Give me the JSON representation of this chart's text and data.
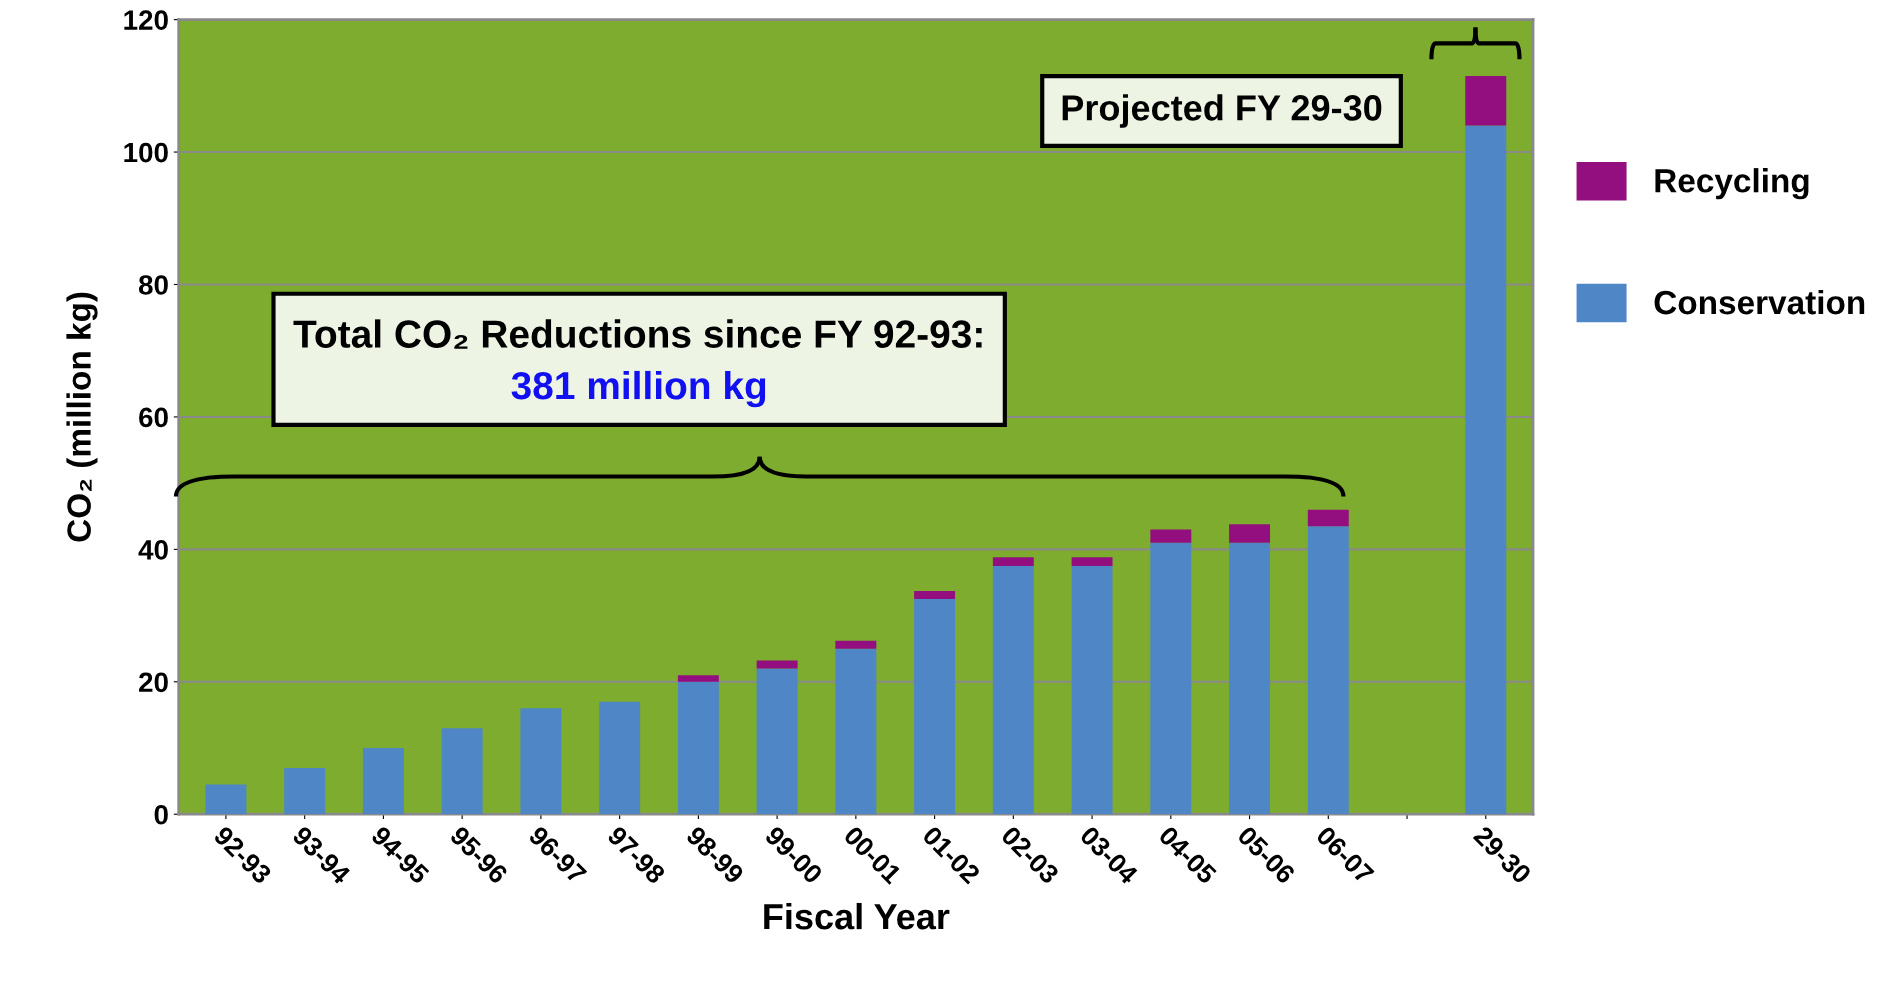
{
  "chart_data": {
    "type": "bar",
    "stacked": true,
    "xlabel": "Fiscal Year",
    "ylabel": "CO₂ (million kg)",
    "categories": [
      "92-93",
      "93-94",
      "94-95",
      "95-96",
      "96-97",
      "97-98",
      "98-99",
      "99-00",
      "00-01",
      "01-02",
      "02-03",
      "03-04",
      "04-05",
      "05-06",
      "06-07",
      null,
      "29-30"
    ],
    "series": [
      {
        "name": "Conservation",
        "color": "#4f86c6",
        "values": [
          4.5,
          7,
          10,
          13,
          16,
          17,
          20,
          22,
          25,
          32.5,
          37.5,
          37.5,
          41,
          41,
          43.5,
          null,
          104
        ]
      },
      {
        "name": "Recycling",
        "color": "#930f7f",
        "values": [
          0,
          0,
          0,
          0,
          0,
          0,
          1,
          1.2,
          1.2,
          1.2,
          1.3,
          1.3,
          2,
          2.8,
          2.5,
          null,
          7.5
        ]
      }
    ],
    "ylim": [
      0,
      120
    ],
    "yticks": [
      0,
      20,
      40,
      60,
      80,
      100,
      120
    ],
    "grid": "y",
    "legend": "right",
    "annotations": [
      "Total CO₂ Reductions since FY 92-93:",
      "381 million kg",
      "Projected FY 29-30"
    ]
  }
}
